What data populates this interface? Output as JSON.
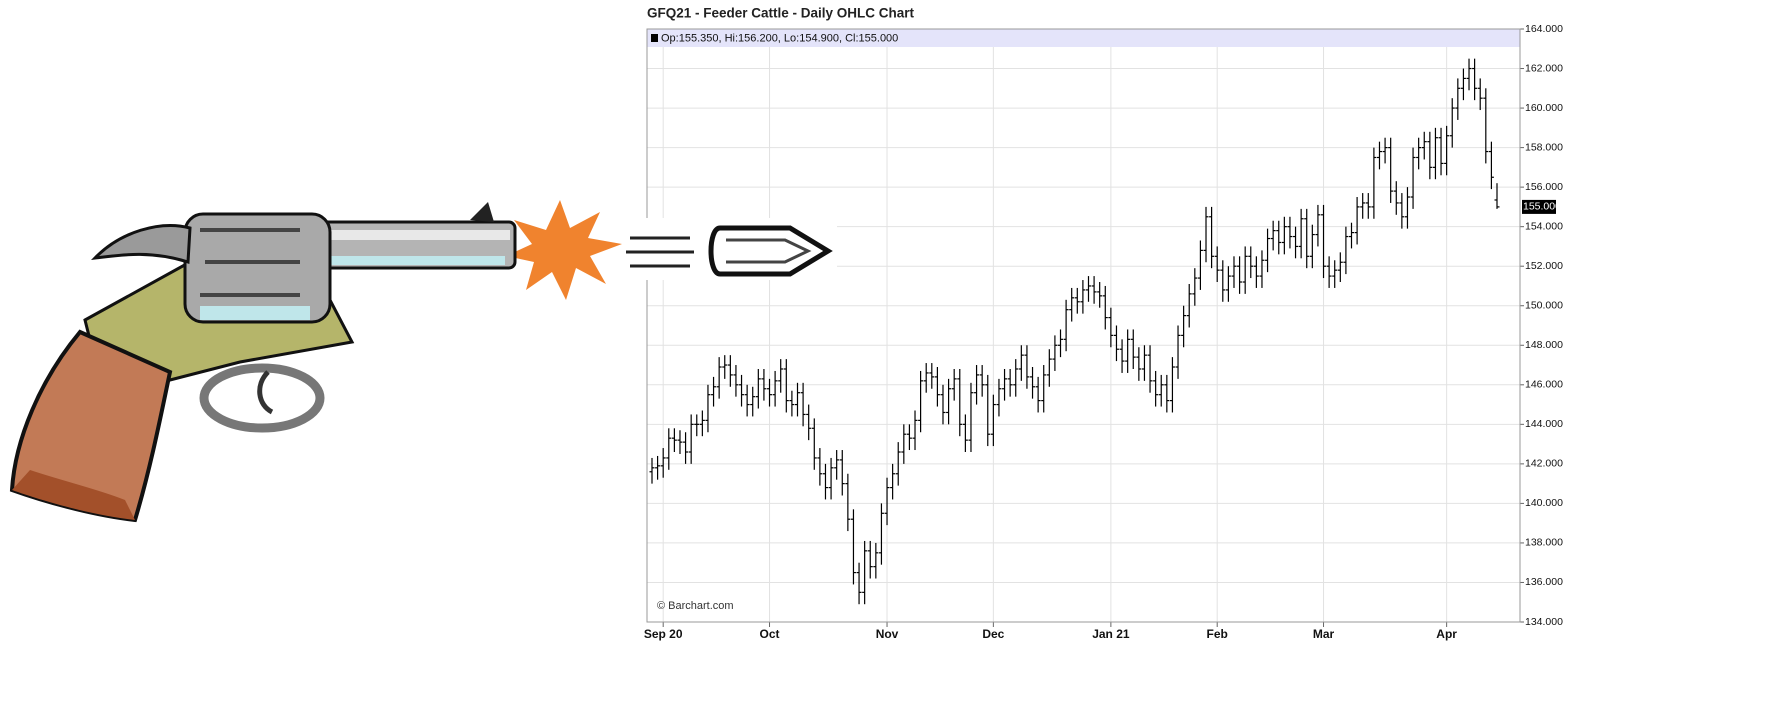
{
  "chart_data": {
    "type": "ohlc",
    "title": "GFQ21 - Feeder Cattle - Daily OHLC Chart",
    "header": "Op:155.350, Hi:156.200, Lo:154.900, Cl:155.000",
    "credit": "© Barchart.com",
    "color": "#000000",
    "grid": true,
    "ylim": [
      134,
      164
    ],
    "yticks": [
      {
        "value": 134,
        "label": "134.000"
      },
      {
        "value": 136,
        "label": "136.000"
      },
      {
        "value": 138,
        "label": "138.000"
      },
      {
        "value": 140,
        "label": "140.000"
      },
      {
        "value": 142,
        "label": "142.000"
      },
      {
        "value": 144,
        "label": "144.000"
      },
      {
        "value": 146,
        "label": "146.000"
      },
      {
        "value": 148,
        "label": "148.000"
      },
      {
        "value": 150,
        "label": "150.000"
      },
      {
        "value": 152,
        "label": "152.000"
      },
      {
        "value": 154,
        "label": "154.000"
      },
      {
        "value": 156,
        "label": "156.000"
      },
      {
        "value": 158,
        "label": "158.000"
      },
      {
        "value": 160,
        "label": "160.000"
      },
      {
        "value": 162,
        "label": "162.000"
      },
      {
        "value": 164,
        "label": "164.000"
      }
    ],
    "last_price": {
      "value": 155.0,
      "label": "155.000"
    },
    "categories": [
      null,
      null,
      "Sep 20",
      null,
      null,
      null,
      null,
      null,
      null,
      null,
      null,
      null,
      null,
      null,
      null,
      null,
      null,
      null,
      null,
      null,
      null,
      "Oct",
      null,
      null,
      null,
      null,
      null,
      null,
      null,
      null,
      null,
      null,
      null,
      null,
      null,
      null,
      null,
      null,
      null,
      null,
      null,
      null,
      "Nov",
      null,
      null,
      null,
      null,
      null,
      null,
      null,
      null,
      null,
      null,
      null,
      null,
      null,
      null,
      null,
      null,
      null,
      null,
      "Dec",
      null,
      null,
      null,
      null,
      null,
      null,
      null,
      null,
      null,
      null,
      null,
      null,
      null,
      null,
      null,
      null,
      null,
      null,
      null,
      null,
      "Jan 21",
      null,
      null,
      null,
      null,
      null,
      null,
      null,
      null,
      null,
      null,
      null,
      null,
      null,
      null,
      null,
      null,
      null,
      null,
      "Feb",
      null,
      null,
      null,
      null,
      null,
      null,
      null,
      null,
      null,
      null,
      null,
      null,
      null,
      null,
      null,
      null,
      null,
      null,
      "Mar",
      null,
      null,
      null,
      null,
      null,
      null,
      null,
      null,
      null,
      null,
      null,
      null,
      null,
      null,
      null,
      null,
      null,
      null,
      null,
      null,
      null,
      "Apr",
      null,
      null,
      null,
      null,
      null,
      null,
      null,
      null,
      null
    ],
    "open": [
      141.6,
      141.8,
      141.9,
      142.3,
      143.3,
      143.2,
      143.1,
      142.6,
      144.0,
      144.0,
      144.2,
      145.5,
      145.9,
      146.9,
      147.0,
      146.5,
      146.0,
      145.5,
      145.0,
      145.4,
      146.3,
      145.8,
      145.5,
      146.2,
      146.8,
      145.2,
      145.0,
      145.6,
      144.5,
      143.8,
      142.3,
      141.5,
      140.8,
      141.8,
      142.2,
      141.0,
      139.2,
      136.5,
      135.5,
      137.6,
      136.8,
      137.5,
      139.5,
      140.8,
      141.5,
      142.6,
      143.5,
      143.3,
      144.2,
      146.2,
      146.6,
      146.4,
      145.5,
      144.6,
      145.8,
      146.3,
      144.0,
      143.2,
      145.6,
      146.5,
      146.0,
      143.5,
      145.0,
      145.8,
      146.3,
      146.0,
      146.8,
      147.5,
      146.4,
      145.9,
      145.2,
      146.5,
      147.3,
      148.0,
      148.3,
      149.8,
      150.4,
      150.2,
      150.8,
      151.0,
      150.7,
      150.5,
      149.4,
      148.5,
      147.8,
      147.2,
      148.3,
      147.4,
      146.8,
      147.5,
      146.2,
      145.5,
      146.0,
      145.2,
      146.9,
      148.5,
      149.5,
      150.6,
      151.4,
      152.8,
      154.5,
      152.5,
      151.8,
      150.8,
      151.5,
      152.0,
      151.2,
      152.5,
      152.0,
      151.5,
      152.3,
      153.4,
      153.8,
      153.2,
      154.0,
      153.5,
      153.0,
      154.4,
      152.5,
      153.6,
      154.6,
      152.0,
      151.5,
      151.8,
      152.2,
      153.5,
      153.7,
      155.0,
      155.2,
      155.0,
      157.5,
      157.8,
      158.0,
      155.8,
      155.2,
      154.5,
      155.5,
      157.5,
      158.0,
      158.3,
      157.0,
      158.5,
      157.2,
      158.6,
      160.0,
      161.0,
      161.5,
      162.0,
      161.0,
      160.5,
      157.8,
      155.35
    ],
    "high": [
      142.3,
      142.4,
      142.8,
      143.8,
      143.8,
      143.7,
      143.6,
      144.5,
      144.5,
      144.7,
      146.0,
      146.4,
      147.4,
      147.5,
      147.5,
      147.0,
      146.5,
      146.0,
      145.9,
      146.8,
      146.8,
      146.3,
      146.7,
      147.3,
      147.3,
      145.7,
      146.1,
      146.1,
      145.0,
      144.3,
      142.8,
      142.0,
      142.3,
      142.7,
      142.7,
      141.5,
      139.7,
      137.0,
      138.1,
      138.1,
      138.0,
      140.0,
      141.3,
      142.0,
      143.1,
      144.0,
      144.0,
      144.7,
      146.7,
      147.1,
      147.1,
      146.9,
      146.0,
      146.3,
      146.8,
      146.8,
      144.5,
      146.1,
      147.0,
      147.0,
      146.5,
      145.5,
      146.3,
      146.8,
      146.8,
      147.3,
      148.0,
      148.0,
      146.9,
      146.4,
      147.0,
      147.8,
      148.5,
      148.8,
      150.3,
      150.9,
      150.9,
      151.3,
      151.5,
      151.5,
      151.2,
      151.0,
      149.9,
      149.0,
      148.3,
      148.8,
      148.8,
      147.9,
      148.0,
      148.0,
      146.7,
      146.5,
      146.5,
      147.4,
      149.0,
      150.0,
      151.1,
      151.9,
      153.3,
      155.0,
      155.0,
      153.0,
      152.3,
      152.0,
      152.5,
      152.5,
      153.0,
      153.0,
      152.5,
      152.8,
      153.9,
      154.3,
      154.3,
      154.5,
      154.5,
      154.0,
      154.9,
      154.9,
      154.1,
      155.1,
      155.1,
      152.5,
      152.3,
      152.7,
      154.0,
      154.2,
      155.5,
      155.7,
      155.7,
      158.0,
      158.3,
      158.5,
      158.5,
      156.3,
      155.7,
      156.0,
      158.0,
      158.5,
      158.8,
      158.8,
      159.0,
      159.0,
      159.1,
      160.5,
      161.5,
      162.0,
      162.5,
      162.5,
      161.5,
      161.0,
      158.3,
      156.2
    ],
    "low": [
      141.0,
      141.2,
      141.3,
      141.7,
      142.6,
      142.5,
      142.0,
      142.0,
      143.4,
      143.4,
      143.6,
      144.9,
      145.3,
      146.3,
      145.9,
      145.4,
      144.9,
      144.4,
      144.4,
      144.8,
      145.2,
      144.9,
      144.9,
      145.6,
      144.6,
      144.4,
      144.4,
      143.9,
      143.2,
      141.7,
      140.9,
      140.2,
      140.2,
      141.2,
      140.4,
      138.6,
      135.9,
      134.9,
      134.9,
      136.2,
      136.2,
      136.9,
      138.9,
      140.2,
      140.9,
      142.0,
      142.7,
      142.7,
      143.6,
      145.6,
      145.8,
      144.9,
      144.0,
      144.0,
      145.2,
      143.4,
      142.6,
      142.6,
      145.0,
      145.4,
      142.9,
      142.9,
      144.4,
      145.2,
      145.4,
      145.4,
      146.2,
      145.8,
      145.3,
      144.6,
      144.6,
      145.9,
      146.7,
      147.4,
      147.7,
      149.2,
      149.6,
      149.6,
      150.2,
      150.1,
      149.9,
      148.8,
      147.9,
      147.2,
      146.6,
      146.6,
      146.8,
      146.2,
      146.2,
      145.6,
      144.9,
      144.9,
      144.6,
      144.6,
      146.3,
      147.9,
      148.9,
      150.0,
      150.8,
      152.2,
      151.9,
      151.2,
      150.2,
      150.2,
      150.9,
      150.6,
      150.6,
      151.4,
      150.9,
      150.9,
      151.7,
      152.8,
      152.6,
      152.6,
      152.9,
      152.4,
      152.4,
      151.9,
      151.9,
      153.0,
      151.4,
      150.9,
      150.9,
      151.2,
      151.6,
      152.9,
      153.1,
      154.4,
      154.4,
      154.4,
      156.9,
      157.2,
      155.2,
      154.6,
      153.9,
      153.9,
      154.9,
      156.9,
      157.4,
      156.4,
      156.4,
      156.6,
      156.6,
      158.0,
      159.4,
      160.4,
      160.9,
      160.4,
      159.9,
      157.2,
      155.9,
      154.9
    ],
    "close": [
      141.8,
      141.9,
      142.3,
      143.3,
      143.2,
      143.1,
      142.6,
      144.0,
      144.0,
      144.2,
      145.5,
      145.9,
      146.9,
      147.0,
      146.5,
      146.0,
      145.5,
      145.0,
      145.4,
      146.3,
      145.8,
      145.5,
      146.2,
      146.8,
      145.2,
      145.0,
      145.6,
      144.5,
      143.8,
      142.3,
      141.5,
      140.8,
      141.8,
      142.2,
      141.0,
      139.2,
      136.5,
      135.5,
      137.6,
      136.8,
      137.5,
      139.5,
      140.8,
      141.5,
      142.6,
      143.5,
      143.3,
      144.2,
      146.2,
      146.6,
      146.4,
      145.5,
      144.6,
      145.8,
      146.3,
      144.0,
      143.2,
      145.6,
      146.5,
      146.0,
      143.5,
      145.0,
      145.8,
      146.3,
      146.0,
      146.8,
      147.5,
      146.4,
      145.9,
      145.2,
      146.5,
      147.3,
      148.0,
      148.3,
      149.8,
      150.4,
      150.2,
      150.8,
      151.0,
      150.7,
      150.5,
      149.4,
      148.5,
      147.8,
      147.2,
      148.3,
      147.4,
      146.8,
      147.5,
      146.2,
      145.5,
      146.0,
      145.2,
      146.9,
      148.5,
      149.5,
      150.6,
      151.4,
      152.8,
      154.5,
      152.5,
      151.8,
      150.8,
      151.5,
      152.0,
      151.2,
      152.5,
      152.0,
      151.5,
      152.3,
      153.4,
      153.8,
      153.2,
      154.0,
      153.5,
      153.0,
      154.4,
      152.5,
      153.6,
      154.6,
      152.0,
      151.5,
      151.8,
      152.2,
      153.5,
      153.7,
      155.0,
      155.2,
      155.0,
      157.5,
      157.8,
      158.0,
      155.8,
      155.2,
      154.5,
      155.5,
      157.5,
      158.0,
      158.3,
      157.0,
      158.5,
      157.2,
      158.6,
      160.0,
      161.0,
      161.5,
      162.0,
      161.0,
      160.5,
      157.8,
      156.5,
      155.0
    ]
  }
}
